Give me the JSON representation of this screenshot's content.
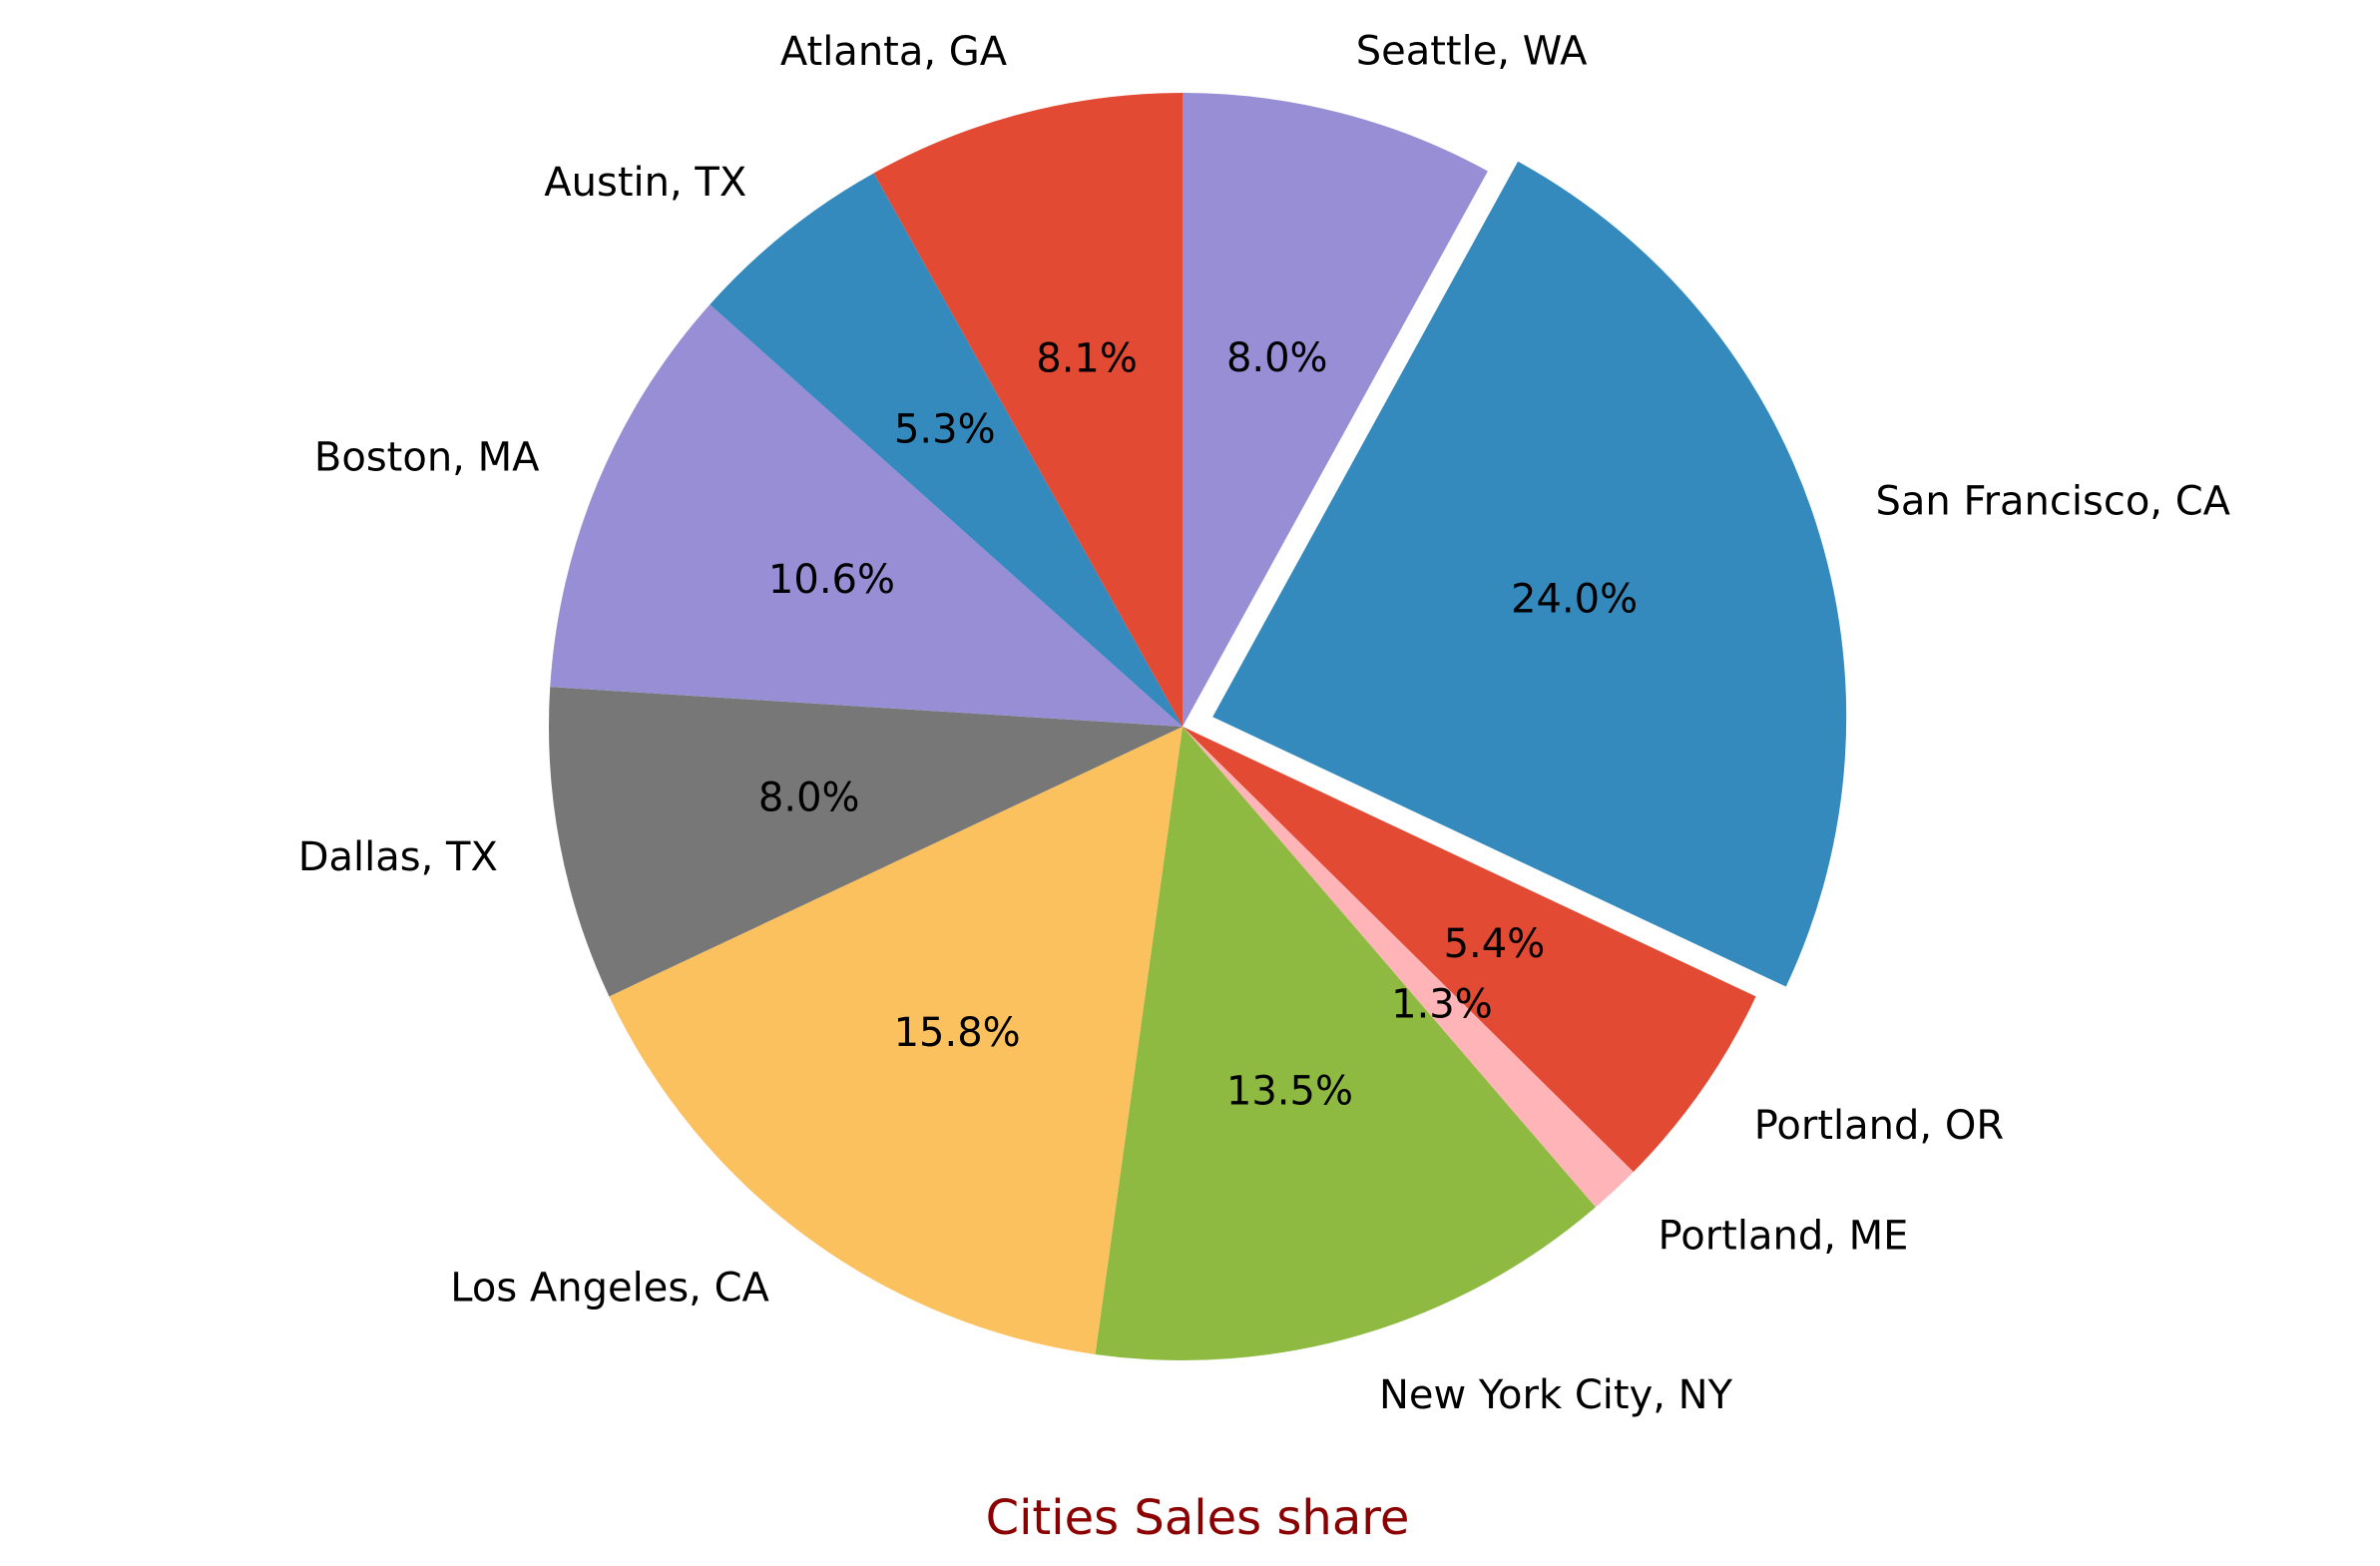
{
  "chart_data": {
    "type": "pie",
    "title": "Cities Sales share",
    "title_color": "#8b0000",
    "start_angle_deg": 90,
    "direction": "clockwise",
    "exploded": [
      "San Francisco, CA"
    ],
    "slices": [
      {
        "label": "Seattle, WA",
        "percent": 8.0,
        "pct_label": "8.0%",
        "color": "#988ed5"
      },
      {
        "label": "San Francisco, CA",
        "percent": 24.0,
        "pct_label": "24.0%",
        "color": "#348abd"
      },
      {
        "label": "Portland, OR",
        "percent": 5.4,
        "pct_label": "5.4%",
        "color": "#e24a33"
      },
      {
        "label": "Portland, ME",
        "percent": 1.3,
        "pct_label": "1.3%",
        "color": "#ffb5b8"
      },
      {
        "label": "New York City, NY",
        "percent": 13.5,
        "pct_label": "13.5%",
        "color": "#8eba42"
      },
      {
        "label": "Los Angeles, CA",
        "percent": 15.8,
        "pct_label": "15.8%",
        "color": "#fbc15e"
      },
      {
        "label": "Dallas, TX",
        "percent": 8.0,
        "pct_label": "8.0%",
        "color": "#777777"
      },
      {
        "label": "Boston, MA",
        "percent": 10.6,
        "pct_label": "10.6%",
        "color": "#988ed5"
      },
      {
        "label": "Austin, TX",
        "percent": 5.3,
        "pct_label": "5.3%",
        "color": "#348abd"
      },
      {
        "label": "Atlanta, GA",
        "percent": 8.1,
        "pct_label": "8.1%",
        "color": "#e24a33"
      }
    ]
  }
}
